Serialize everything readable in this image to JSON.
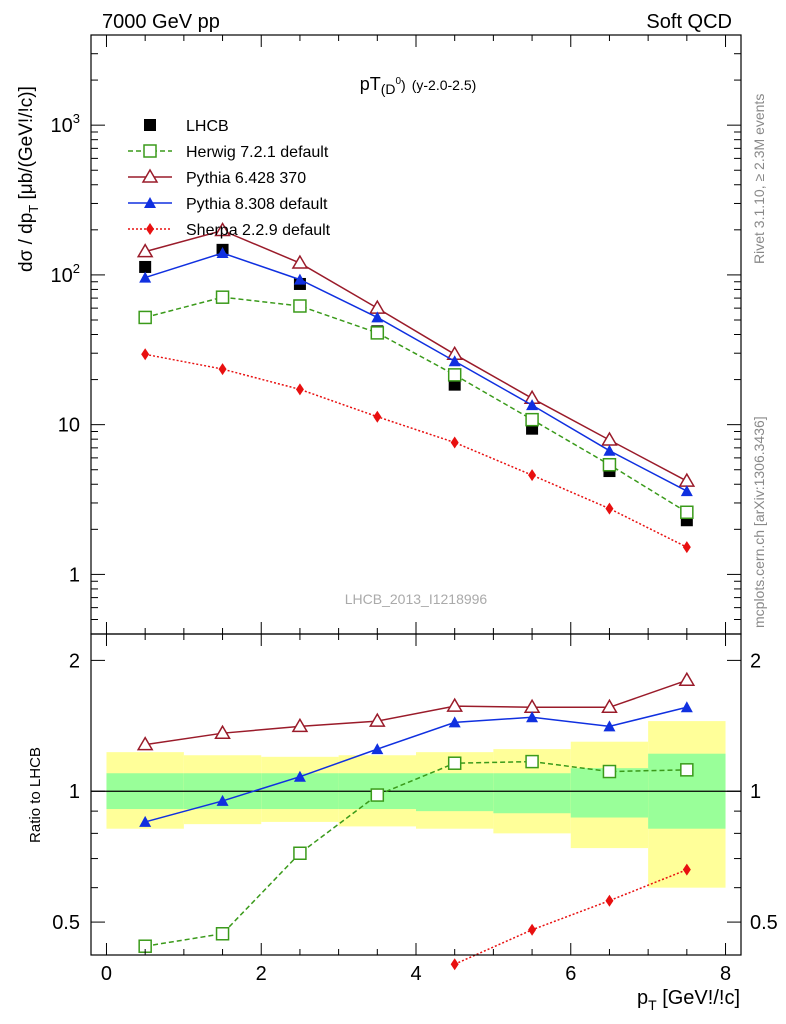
{
  "header": {
    "left": "7000 GeV pp",
    "right": "Soft QCD"
  },
  "side_labels": {
    "rivet": "Rivet 3.1.10, ≥ 2.3M events",
    "mcplots": "mcplots.cern.ch [arXiv:1306.3436]"
  },
  "chart_data": [
    {
      "type": "line",
      "title": "pT(D0) (y-2.0-2.5)",
      "ylabel": "dσ / dpT [μb/(GeV!/!c)]",
      "yscale": "log",
      "ylim": [
        0.4,
        4000
      ],
      "xlim": [
        -0.2,
        8.2
      ],
      "yticks": [
        "1",
        "10",
        "10^2",
        "10^3"
      ],
      "watermark": "LHCB_2013_I1218996",
      "legend_position": "top-left",
      "x": [
        0.5,
        1.5,
        2.5,
        3.5,
        4.5,
        5.5,
        6.5,
        7.5
      ],
      "series": [
        {
          "name": "LHCB",
          "color": "#000000",
          "marker": "square-filled",
          "line": "none",
          "values": [
            113,
            147,
            87,
            42,
            18.5,
            9.4,
            4.9,
            2.3
          ]
        },
        {
          "name": "Herwig 7.2.1 default",
          "color": "#3a9a1a",
          "marker": "square-open",
          "line": "dashed",
          "values": [
            52,
            71,
            62,
            41,
            21.5,
            10.8,
            5.4,
            2.6
          ]
        },
        {
          "name": "Pythia 6.428 370",
          "color": "#9a1b2a",
          "marker": "triangle-open",
          "line": "solid",
          "values": [
            143,
            198,
            120,
            60,
            29.5,
            15,
            7.9,
            4.2
          ]
        },
        {
          "name": "Pythia 8.308 default",
          "color": "#1030e0",
          "marker": "triangle-filled",
          "line": "solid",
          "values": [
            96,
            140,
            93,
            52,
            26.5,
            13.5,
            6.7,
            3.6
          ]
        },
        {
          "name": "Sherpa 2.2.9 default",
          "color": "#e81010",
          "marker": "diamond-filled",
          "line": "dotted",
          "values": [
            29.5,
            23.5,
            17.2,
            11.3,
            7.6,
            4.6,
            2.75,
            1.52
          ]
        }
      ]
    },
    {
      "type": "line",
      "ylabel": "Ratio to LHCB",
      "xlabel": "pT [GeV!/!c]",
      "yscale": "log",
      "ylim": [
        0.42,
        2.3
      ],
      "xlim": [
        -0.2,
        8.2
      ],
      "yticks": [
        "0.5",
        "1",
        "2"
      ],
      "xticks": [
        "0",
        "2",
        "4",
        "6",
        "8"
      ],
      "bins": [
        0,
        1,
        2,
        3,
        4,
        5,
        6,
        7,
        8
      ],
      "band_stat": [
        [
          0.91,
          1.1
        ],
        [
          0.91,
          1.1
        ],
        [
          0.91,
          1.1
        ],
        [
          0.91,
          1.1
        ],
        [
          0.9,
          1.1
        ],
        [
          0.89,
          1.1
        ],
        [
          0.87,
          1.13
        ],
        [
          0.82,
          1.22
        ]
      ],
      "band_total": [
        [
          0.82,
          1.23
        ],
        [
          0.84,
          1.21
        ],
        [
          0.85,
          1.2
        ],
        [
          0.83,
          1.21
        ],
        [
          0.82,
          1.23
        ],
        [
          0.8,
          1.25
        ],
        [
          0.74,
          1.3
        ],
        [
          0.6,
          1.45
        ]
      ],
      "x": [
        0.5,
        1.5,
        2.5,
        3.5,
        4.5,
        5.5,
        6.5,
        7.5
      ],
      "series": [
        {
          "name": "Herwig 7.2.1 default",
          "color": "#3a9a1a",
          "marker": "square-open",
          "line": "dashed",
          "values": [
            0.44,
            0.47,
            0.72,
            0.98,
            1.16,
            1.17,
            1.11,
            1.12
          ]
        },
        {
          "name": "Pythia 6.428 370",
          "color": "#9a1b2a",
          "marker": "triangle-open",
          "line": "solid",
          "values": [
            1.28,
            1.36,
            1.41,
            1.45,
            1.57,
            1.56,
            1.56,
            1.8
          ]
        },
        {
          "name": "Pythia 8.308 default",
          "color": "#1030e0",
          "marker": "triangle-filled",
          "line": "solid",
          "values": [
            0.85,
            0.95,
            1.08,
            1.25,
            1.44,
            1.48,
            1.41,
            1.56
          ]
        },
        {
          "name": "Sherpa 2.2.9 default",
          "color": "#e81010",
          "marker": "diamond-filled",
          "line": "dotted",
          "values": [
            null,
            null,
            null,
            null,
            0.4,
            0.48,
            0.56,
            0.66
          ]
        }
      ]
    }
  ]
}
